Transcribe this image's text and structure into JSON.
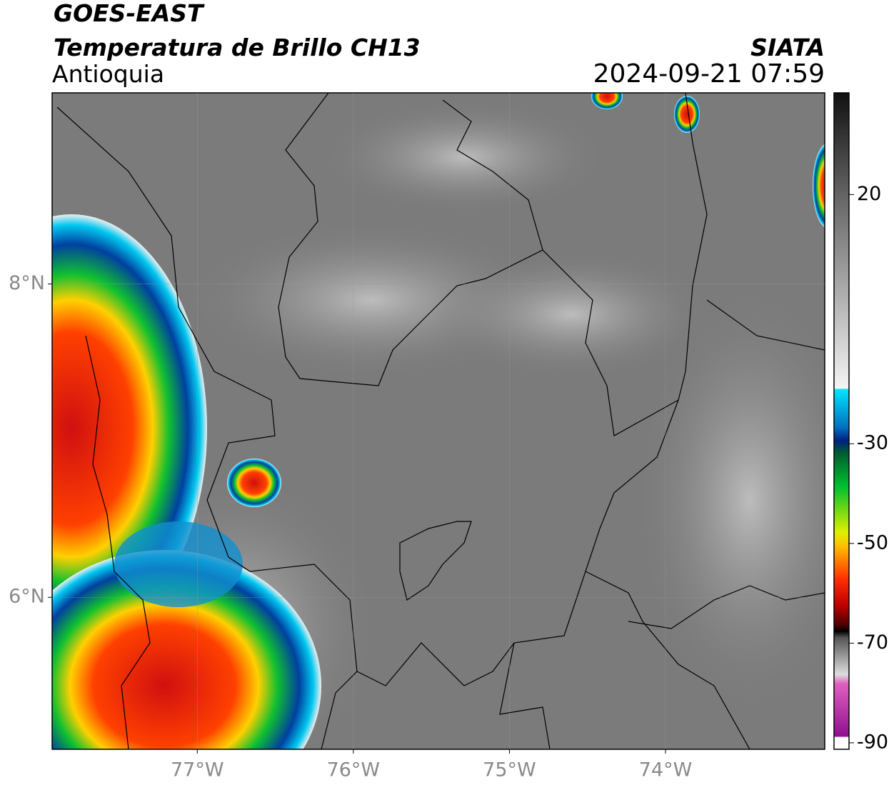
{
  "header": {
    "title": "GOES-EAST",
    "subtitle": "Temperatura de Brillo CH13",
    "region": "Antioquia",
    "source": "SIATA",
    "datetime": "2024-09-21 07:59"
  },
  "map": {
    "lonlim": [
      -77.93,
      -72.98
    ],
    "latlim": [
      5.03,
      9.22
    ],
    "lonticks": [
      {
        "value": -77,
        "label": "77°W"
      },
      {
        "value": -76,
        "label": "76°W"
      },
      {
        "value": -75,
        "label": "75°W"
      },
      {
        "value": -74,
        "label": "74°W"
      }
    ],
    "latticks": [
      {
        "value": 8,
        "label": "8°N"
      },
      {
        "value": 6,
        "label": "6°N"
      }
    ]
  },
  "colorbar": {
    "lim": [
      -91.3,
      40.4
    ],
    "ticks": [
      20,
      -30,
      -50,
      -70,
      -90
    ]
  }
}
